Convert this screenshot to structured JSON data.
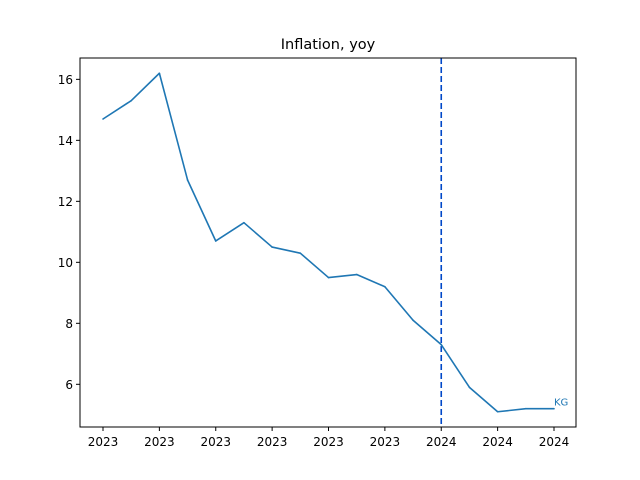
{
  "chart_data": {
    "type": "line",
    "title": "Inflation, yoy",
    "xlabel": "",
    "ylabel": "",
    "x_tick_labels": [
      "2023",
      "2023",
      "2023",
      "2023",
      "2023",
      "2023",
      "2024",
      "2024",
      "2024"
    ],
    "y_ticks": [
      6,
      8,
      10,
      12,
      14,
      16
    ],
    "ylim": [
      4.6,
      16.7
    ],
    "grid": false,
    "legend": "none",
    "line_color": "#1f77b4",
    "vline_color": "#0047c8",
    "vline_index": 12,
    "series": [
      {
        "label": "KG",
        "values": [
          14.7,
          15.3,
          16.2,
          12.7,
          10.7,
          11.3,
          10.5,
          10.3,
          9.5,
          9.6,
          9.2,
          8.1,
          7.3,
          5.9,
          5.1,
          5.2,
          5.2
        ]
      }
    ]
  }
}
